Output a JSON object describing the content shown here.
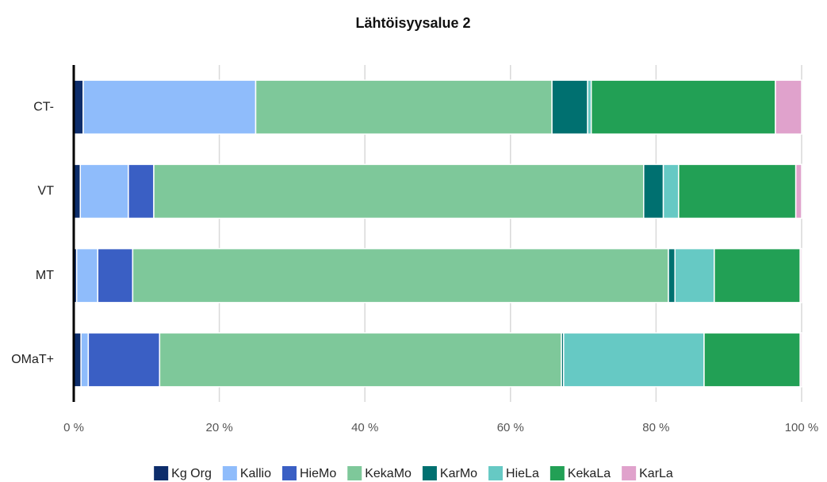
{
  "chart_data": {
    "type": "stacked_bar_horizontal",
    "title": "Lähtöisyysalue 2",
    "categories": [
      "CT-",
      "VT",
      "MT",
      "OMaT+"
    ],
    "series": [
      {
        "name": "Kg Org",
        "color": "#0d2d6b",
        "values": [
          1.3,
          0.9,
          0.4,
          1.0
        ]
      },
      {
        "name": "Kallio",
        "color": "#8fbcfb",
        "values": [
          23.7,
          6.6,
          2.9,
          1.0
        ]
      },
      {
        "name": "HieMo",
        "color": "#3a5fc4",
        "values": [
          0,
          3.5,
          4.8,
          9.8
        ]
      },
      {
        "name": "KekaMo",
        "color": "#7ec89a",
        "values": [
          40.7,
          67.3,
          73.6,
          55.2
        ]
      },
      {
        "name": "KarMo",
        "color": "#007070",
        "values": [
          4.9,
          2.7,
          0.9,
          0.3
        ]
      },
      {
        "name": "HieLa",
        "color": "#66c9c4",
        "values": [
          0.5,
          2.1,
          5.4,
          19.3
        ]
      },
      {
        "name": "KekaLa",
        "color": "#22a055",
        "values": [
          25.3,
          16.1,
          11.8,
          13.2
        ]
      },
      {
        "name": "KarLa",
        "color": "#e0a2cc",
        "values": [
          3.6,
          0.8,
          0.2,
          0.2
        ]
      }
    ],
    "xlim": [
      0,
      100
    ],
    "xticks": [
      {
        "value": 0,
        "label": "0 %"
      },
      {
        "value": 20,
        "label": "20 %"
      },
      {
        "value": 40,
        "label": "40 %"
      },
      {
        "value": 60,
        "label": "60 %"
      },
      {
        "value": 80,
        "label": "80 %"
      },
      {
        "value": 100,
        "label": "100 %"
      }
    ],
    "grid": true,
    "legend": "bottom"
  }
}
